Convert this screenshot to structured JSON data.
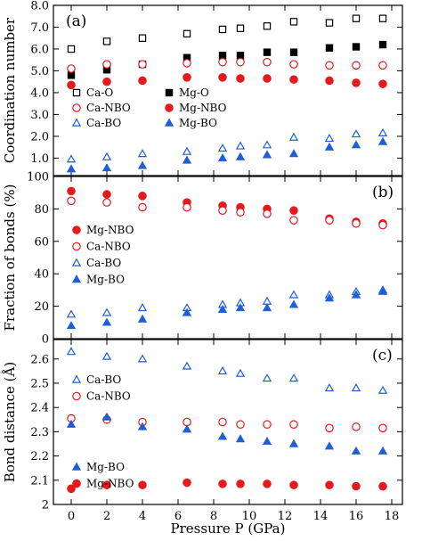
{
  "colors": {
    "black": "#000000",
    "red": "#e41a1c",
    "blue": "#1f5fd6",
    "frame": "#000000"
  },
  "chart_data": [
    {
      "type": "scatter",
      "panel_label": "(a)",
      "ylabel": "Coordination number",
      "xlim": [
        -1,
        18.6
      ],
      "ylim": [
        0.2,
        8.0
      ],
      "yticks": [
        "1.0",
        "2.0",
        "3.0",
        "4.0",
        "5.0",
        "6.0",
        "7.0",
        "8.0"
      ],
      "show_xtick_labels": false,
      "series": [
        {
          "name": "Ca-O",
          "color": "#000000",
          "marker": "square",
          "filled": false,
          "x": [
            0,
            2,
            4,
            6.5,
            8.5,
            9.5,
            11,
            12.5,
            14.5,
            16,
            17.5
          ],
          "y": [
            6.0,
            6.35,
            6.5,
            6.7,
            6.9,
            6.95,
            7.05,
            7.25,
            7.2,
            7.4,
            7.4
          ]
        },
        {
          "name": "Mg-O",
          "color": "#000000",
          "marker": "square",
          "filled": true,
          "x": [
            0,
            2,
            4,
            6.5,
            8.5,
            9.5,
            11,
            12.5,
            14.5,
            16,
            17.5
          ],
          "y": [
            4.8,
            5.05,
            5.3,
            5.6,
            5.7,
            5.7,
            5.85,
            5.85,
            6.05,
            6.1,
            6.2
          ]
        },
        {
          "name": "Ca-NBO",
          "color": "#e41a1c",
          "marker": "circle",
          "filled": false,
          "x": [
            0,
            2,
            4,
            6.5,
            8.5,
            9.5,
            11,
            12.5,
            14.5,
            16,
            17.5
          ],
          "y": [
            5.1,
            5.3,
            5.3,
            5.35,
            5.4,
            5.4,
            5.4,
            5.3,
            5.25,
            5.25,
            5.25
          ]
        },
        {
          "name": "Mg-NBO",
          "color": "#e41a1c",
          "marker": "circle",
          "filled": true,
          "x": [
            0,
            2,
            4,
            6.5,
            8.5,
            9.5,
            11,
            12.5,
            14.5,
            16,
            17.5
          ],
          "y": [
            4.35,
            4.5,
            4.55,
            4.7,
            4.7,
            4.65,
            4.65,
            4.6,
            4.55,
            4.45,
            4.4
          ]
        },
        {
          "name": "Ca-BO",
          "color": "#1f5fd6",
          "marker": "triangle",
          "filled": false,
          "x": [
            0,
            2,
            4,
            6.5,
            8.5,
            9.5,
            11,
            12.5,
            14.5,
            16,
            17.5
          ],
          "y": [
            0.95,
            1.05,
            1.2,
            1.3,
            1.45,
            1.55,
            1.6,
            1.95,
            1.9,
            2.1,
            2.15
          ]
        },
        {
          "name": "Mg-BO",
          "color": "#1f5fd6",
          "marker": "triangle",
          "filled": true,
          "x": [
            0,
            2,
            4,
            6.5,
            8.5,
            9.5,
            11,
            12.5,
            14.5,
            16,
            17.5
          ],
          "y": [
            0.5,
            0.55,
            0.65,
            0.9,
            1.0,
            1.05,
            1.15,
            1.2,
            1.5,
            1.6,
            1.75
          ]
        }
      ],
      "legend": {
        "position": "left",
        "columns": 2
      }
    },
    {
      "type": "scatter",
      "panel_label": "(b)",
      "ylabel": "Fraction of bonds (%)",
      "xlim": [
        -1,
        18.6
      ],
      "ylim": [
        0,
        100
      ],
      "yticks": [
        "0",
        "20",
        "40",
        "60",
        "80",
        "100"
      ],
      "show_xtick_labels": false,
      "series": [
        {
          "name": "Mg-NBO",
          "color": "#e41a1c",
          "marker": "circle",
          "filled": true,
          "x": [
            0,
            2,
            4,
            6.5,
            8.5,
            9.5,
            11,
            12.5,
            14.5,
            16,
            17.5
          ],
          "y": [
            91,
            89,
            88,
            84,
            82,
            81,
            80,
            79,
            74,
            72,
            71
          ]
        },
        {
          "name": "Ca-NBO",
          "color": "#e41a1c",
          "marker": "circle",
          "filled": false,
          "x": [
            0,
            2,
            4,
            6.5,
            8.5,
            9.5,
            11,
            12.5,
            14.5,
            16,
            17.5
          ],
          "y": [
            85,
            84,
            81,
            81,
            79,
            78,
            77,
            73,
            73,
            71,
            70
          ]
        },
        {
          "name": "Ca-BO",
          "color": "#1f5fd6",
          "marker": "triangle",
          "filled": false,
          "x": [
            0,
            2,
            4,
            6.5,
            8.5,
            9.5,
            11,
            12.5,
            14.5,
            16,
            17.5
          ],
          "y": [
            15,
            16,
            19,
            19,
            21,
            22,
            23,
            27,
            27,
            29,
            30
          ]
        },
        {
          "name": "Mg-BO",
          "color": "#1f5fd6",
          "marker": "triangle",
          "filled": true,
          "x": [
            0,
            2,
            4,
            6.5,
            8.5,
            9.5,
            11,
            12.5,
            14.5,
            16,
            17.5
          ],
          "y": [
            8,
            10,
            12,
            16,
            18,
            19,
            19,
            21,
            25,
            27,
            29
          ]
        }
      ],
      "legend": {
        "position": "left",
        "columns": 1
      }
    },
    {
      "type": "scatter",
      "panel_label": "(c)",
      "ylabel": "Bond distance (Å)",
      "xlabel": "Pressure P (GPa)",
      "xlim": [
        -1,
        18.6
      ],
      "ylim": [
        2.0,
        2.68
      ],
      "yticks": [
        "2",
        "2.1",
        "2.2",
        "2.3",
        "2.4",
        "2.5",
        "2.6"
      ],
      "xticks": [
        "0",
        "2",
        "4",
        "6",
        "8",
        "10",
        "12",
        "14",
        "16",
        "18"
      ],
      "show_xtick_labels": true,
      "series": [
        {
          "name": "Ca-BO",
          "color": "#1f5fd6",
          "marker": "triangle",
          "filled": false,
          "x": [
            0,
            2,
            4,
            6.5,
            8.5,
            9.5,
            11,
            12.5,
            14.5,
            16,
            17.5
          ],
          "y": [
            2.63,
            2.61,
            2.6,
            2.57,
            2.55,
            2.54,
            2.52,
            2.52,
            2.48,
            2.48,
            2.47
          ]
        },
        {
          "name": "Ca-NBO",
          "color": "#e41a1c",
          "marker": "circle",
          "filled": false,
          "x": [
            0,
            2,
            4,
            6.5,
            8.5,
            9.5,
            11,
            12.5,
            14.5,
            16,
            17.5
          ],
          "y": [
            2.355,
            2.35,
            2.34,
            2.34,
            2.34,
            2.33,
            2.33,
            2.33,
            2.315,
            2.32,
            2.315
          ]
        },
        {
          "name": "Mg-BO",
          "color": "#1f5fd6",
          "marker": "triangle",
          "filled": true,
          "x": [
            0,
            2,
            4,
            6.5,
            8.5,
            9.5,
            11,
            12.5,
            14.5,
            16,
            17.5
          ],
          "y": [
            2.33,
            2.36,
            2.32,
            2.31,
            2.28,
            2.27,
            2.26,
            2.25,
            2.24,
            2.22,
            2.22
          ]
        },
        {
          "name": "Mg-NBO",
          "color": "#e41a1c",
          "marker": "circle",
          "filled": true,
          "x": [
            0,
            2,
            4,
            6.5,
            8.5,
            9.5,
            11,
            12.5,
            14.5,
            16,
            17.5
          ],
          "y": [
            2.065,
            2.08,
            2.08,
            2.09,
            2.085,
            2.085,
            2.085,
            2.08,
            2.08,
            2.075,
            2.075
          ]
        }
      ],
      "legend": {
        "position": "left",
        "columns": 1,
        "split": [
          2,
          2
        ]
      }
    }
  ]
}
